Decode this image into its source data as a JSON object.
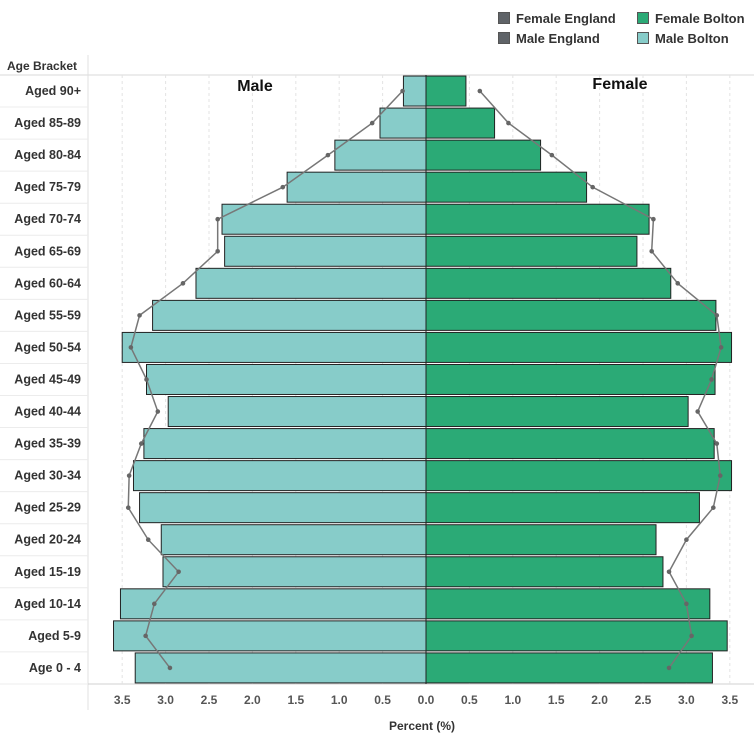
{
  "chart_data": {
    "type": "bar",
    "subtype": "population-pyramid",
    "row_header": "Age Bracket",
    "categories": [
      "Aged 90+",
      "Aged 85-89",
      "Aged 80-84",
      "Aged 75-79",
      "Aged 70-74",
      "Aged 65-69",
      "Aged 60-64",
      "Aged 55-59",
      "Aged 50-54",
      "Aged 45-49",
      "Aged 40-44",
      "Aged 35-39",
      "Aged 30-34",
      "Aged 25-29",
      "Aged 20-24",
      "Aged 15-19",
      "Aged 10-14",
      "Aged 5-9",
      "Age 0 - 4"
    ],
    "series": [
      {
        "name": "Male Bolton",
        "side": "left",
        "kind": "bar",
        "color": "#87CCC9",
        "values": [
          0.26,
          0.53,
          1.05,
          1.6,
          2.35,
          2.32,
          2.65,
          3.15,
          3.5,
          3.22,
          2.97,
          3.25,
          3.37,
          3.3,
          3.05,
          3.03,
          3.52,
          3.6,
          3.35
        ]
      },
      {
        "name": "Female Bolton",
        "side": "right",
        "kind": "bar",
        "color": "#2BAA76",
        "values": [
          0.46,
          0.79,
          1.32,
          1.85,
          2.57,
          2.43,
          2.82,
          3.34,
          3.52,
          3.33,
          3.02,
          3.32,
          3.52,
          3.15,
          2.65,
          2.73,
          3.27,
          3.47,
          3.3
        ]
      },
      {
        "name": "Male England",
        "side": "left",
        "kind": "line",
        "color": "#777777",
        "values": [
          0.27,
          0.62,
          1.13,
          1.65,
          2.4,
          2.4,
          2.8,
          3.3,
          3.4,
          3.22,
          3.09,
          3.28,
          3.42,
          3.43,
          3.2,
          2.85,
          3.13,
          3.23,
          2.95
        ]
      },
      {
        "name": "Female England",
        "side": "right",
        "kind": "line",
        "color": "#777777",
        "values": [
          0.62,
          0.95,
          1.45,
          1.92,
          2.62,
          2.6,
          2.9,
          3.35,
          3.4,
          3.29,
          3.13,
          3.35,
          3.39,
          3.31,
          3.0,
          2.8,
          3.0,
          3.06,
          2.8
        ]
      }
    ],
    "side_labels": {
      "left": "Male",
      "right": "Female"
    },
    "xlabel": "Percent (%)",
    "x_ticks_left": [
      "3.5",
      "3.0",
      "2.5",
      "2.0",
      "1.5",
      "1.0",
      "0.5"
    ],
    "x_ticks_right": [
      "0.0",
      "0.5",
      "1.0",
      "1.5",
      "2.0",
      "2.5",
      "3.0",
      "3.5"
    ],
    "xlim": [
      0,
      3.5
    ],
    "grid": "vertical-dashed",
    "legend_position": "top-right"
  },
  "legend": {
    "female_england": {
      "label": "Female England",
      "color": "#5F6368"
    },
    "male_england": {
      "label": "Male England",
      "color": "#5F6368"
    },
    "female_bolton": {
      "label": "Female Bolton",
      "color": "#2BAA76"
    },
    "male_bolton": {
      "label": "Male Bolton",
      "color": "#87CCC9"
    }
  }
}
